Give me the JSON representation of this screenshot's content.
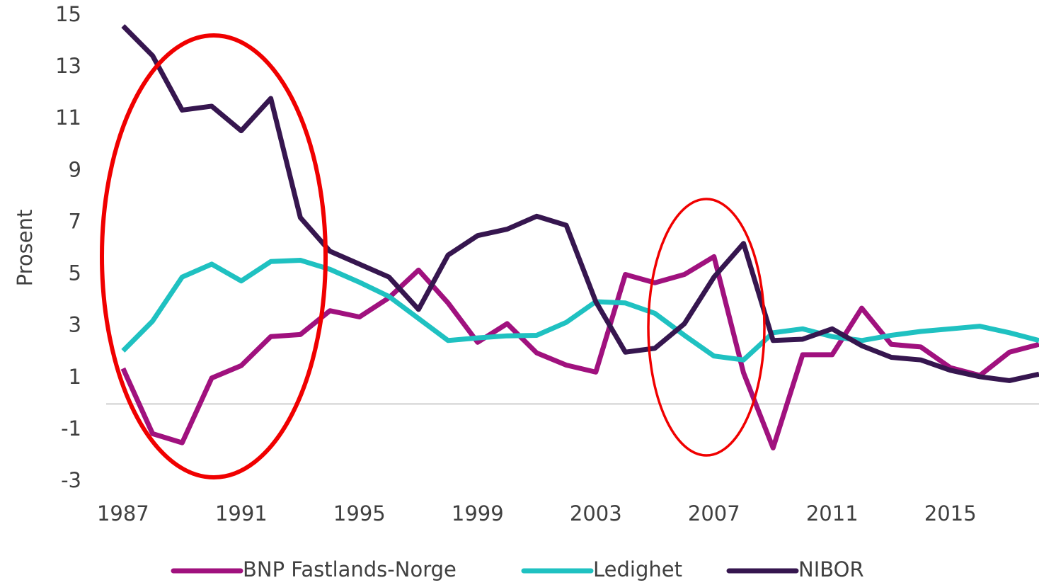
{
  "chart_data": {
    "type": "line",
    "y_label": "Prosent",
    "x": [
      1987,
      1988,
      1989,
      1990,
      1991,
      1992,
      1993,
      1994,
      1995,
      1996,
      1997,
      1998,
      1999,
      2000,
      2001,
      2002,
      2003,
      2004,
      2005,
      2006,
      2007,
      2008,
      2009,
      2010,
      2011,
      2012,
      2013,
      2014,
      2015,
      2016,
      2017,
      2018
    ],
    "series": [
      {
        "name": "BNP Fastlands-Norge",
        "color": "#a0117e",
        "values": [
          1.37,
          -1.15,
          -1.5,
          1.0,
          1.48,
          2.6,
          2.68,
          3.6,
          3.36,
          4.1,
          5.17,
          3.9,
          2.38,
          3.1,
          1.97,
          1.5,
          1.23,
          5.0,
          4.68,
          5.0,
          5.69,
          1.2,
          -1.7,
          1.9,
          1.9,
          3.7,
          2.3,
          2.2,
          1.4,
          1.1,
          2.0,
          2.3
        ]
      },
      {
        "name": "Ledighet",
        "color": "#1fc1c1",
        "values": [
          2.05,
          3.2,
          4.9,
          5.4,
          4.75,
          5.5,
          5.55,
          5.2,
          4.7,
          4.15,
          3.3,
          2.45,
          2.55,
          2.63,
          2.65,
          3.15,
          3.95,
          3.9,
          3.5,
          2.65,
          1.85,
          1.7,
          2.75,
          2.9,
          2.6,
          2.45,
          2.65,
          2.8,
          2.9,
          3.0,
          2.75,
          2.45
        ]
      },
      {
        "name": "NIBOR",
        "color": "#36164f",
        "values": [
          14.6,
          13.45,
          11.35,
          11.5,
          10.55,
          11.8,
          7.2,
          5.9,
          5.4,
          4.9,
          3.65,
          5.75,
          6.5,
          6.75,
          7.25,
          6.9,
          3.95,
          2.0,
          2.15,
          3.1,
          4.9,
          6.2,
          2.45,
          2.5,
          2.9,
          2.25,
          1.8,
          1.7,
          1.3,
          1.05,
          0.9,
          1.15
        ]
      }
    ],
    "xlim": [
      1986.5,
      2018
    ],
    "xticks": [
      1987,
      1991,
      1995,
      1999,
      2003,
      2007,
      2011,
      2015
    ],
    "ylim": [
      -3,
      15
    ],
    "yticks": [
      -3,
      -1,
      1,
      3,
      5,
      7,
      9,
      11,
      13,
      15
    ],
    "legend": "bottom"
  }
}
